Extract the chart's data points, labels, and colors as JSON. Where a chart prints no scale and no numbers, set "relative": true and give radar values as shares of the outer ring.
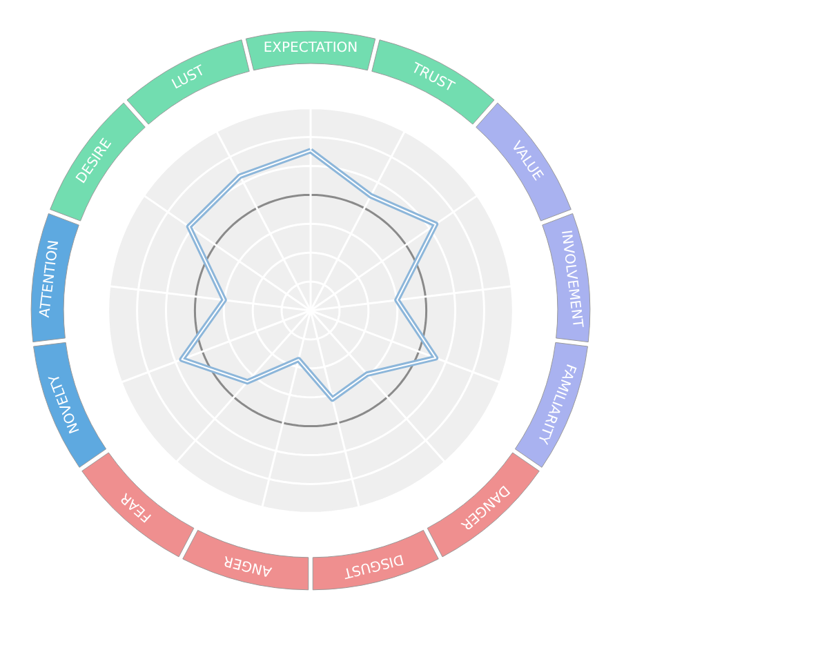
{
  "chart_data": {
    "type": "radar",
    "relative": true,
    "grid": true,
    "categories": [
      "EXPECTATION",
      "TRUST",
      "VALUE",
      "INVOLVEMENT",
      "FAMILIARITY",
      "DANGER",
      "DISGUST",
      "ANGER",
      "FEAR",
      "NOVELTY",
      "ATTENTION",
      "DESIRE",
      "LUST"
    ],
    "colors": [
      "#72ddb0",
      "#72ddb0",
      "#a9b2f0",
      "#a9b2f0",
      "#a9b2f0",
      "#ef8f8f",
      "#ef8f8f",
      "#ef8f8f",
      "#ef8f8f",
      "#5ea9e0",
      "#5ea9e0",
      "#72ddb0",
      "#72ddb0"
    ],
    "series": [
      {
        "color": "#8cb6da",
        "values": [
          0.79,
          0.64,
          0.75,
          0.43,
          0.66,
          0.42,
          0.45,
          0.25,
          0.47,
          0.68,
          0.43,
          0.73,
          0.75
        ]
      }
    ]
  }
}
